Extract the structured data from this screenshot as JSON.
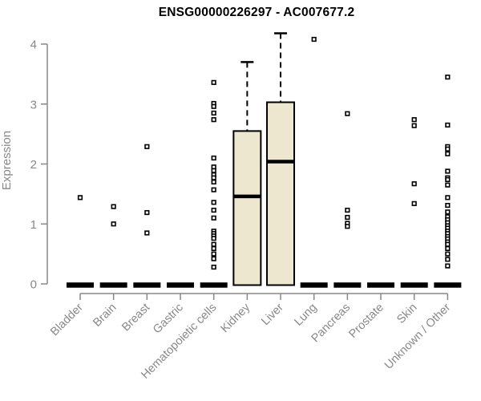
{
  "title": "ENSG00000226297 - AC007677.2",
  "chart_data": {
    "type": "boxplot",
    "title": "ENSG00000226297 - AC007677.2",
    "ylabel": "Expression",
    "xlabel": "",
    "ylim": [
      0,
      4
    ],
    "yticks": [
      0,
      1,
      2,
      3,
      4
    ],
    "grid": false,
    "legend": "none",
    "categories": [
      "Bladder",
      "Brain",
      "Breast",
      "Gastric",
      "Hematopoietic cells",
      "Kidney",
      "Liver",
      "Lung",
      "Pancreas",
      "Prostate",
      "Skin",
      "Unknown / Other"
    ],
    "boxes": [
      {
        "category": "Bladder",
        "q1": 0,
        "median": 0,
        "q3": 0,
        "whisker_low": 0,
        "whisker_high": 0,
        "outliers": [
          1.44
        ]
      },
      {
        "category": "Brain",
        "q1": 0,
        "median": 0,
        "q3": 0,
        "whisker_low": 0,
        "whisker_high": 0,
        "outliers": [
          1.29,
          1.0
        ]
      },
      {
        "category": "Breast",
        "q1": 0,
        "median": 0,
        "q3": 0,
        "whisker_low": 0,
        "whisker_high": 0,
        "outliers": [
          2.29,
          1.19,
          0.85
        ]
      },
      {
        "category": "Gastric",
        "q1": 0,
        "median": 0,
        "q3": 0,
        "whisker_low": 0,
        "whisker_high": 0,
        "outliers": []
      },
      {
        "category": "Hematopoietic cells",
        "q1": 0,
        "median": 0,
        "q3": 0,
        "whisker_low": 0,
        "whisker_high": 0,
        "outliers": [
          3.36,
          3.01,
          2.96,
          2.85,
          2.74,
          2.1,
          1.95,
          1.89,
          1.82,
          1.77,
          1.7,
          1.57,
          1.36,
          1.23,
          1.1,
          0.88,
          0.84,
          0.8,
          0.76,
          0.66,
          0.59,
          0.5,
          0.42,
          0.28
        ]
      },
      {
        "category": "Kidney",
        "q1": 0,
        "median": 1.46,
        "q3": 2.55,
        "whisker_low": 0,
        "whisker_high": 3.7,
        "outliers": []
      },
      {
        "category": "Liver",
        "q1": 0,
        "median": 2.04,
        "q3": 3.03,
        "whisker_low": 0,
        "whisker_high": 4.18,
        "outliers": []
      },
      {
        "category": "Lung",
        "q1": 0,
        "median": 0,
        "q3": 0,
        "whisker_low": 0,
        "whisker_high": 0,
        "outliers": [
          4.08
        ]
      },
      {
        "category": "Pancreas",
        "q1": 0,
        "median": 0,
        "q3": 0,
        "whisker_low": 0,
        "whisker_high": 0,
        "outliers": [
          2.84,
          1.23,
          1.11,
          1.01,
          0.96
        ]
      },
      {
        "category": "Prostate",
        "q1": 0,
        "median": 0,
        "q3": 0,
        "whisker_low": 0,
        "whisker_high": 0,
        "outliers": []
      },
      {
        "category": "Skin",
        "q1": 0,
        "median": 0,
        "q3": 0,
        "whisker_low": 0,
        "whisker_high": 0,
        "outliers": [
          2.74,
          2.64,
          1.67,
          1.34
        ]
      },
      {
        "category": "Unknown / Other",
        "q1": 0,
        "median": 0,
        "q3": 0,
        "whisker_low": 0,
        "whisker_high": 0,
        "outliers": [
          3.45,
          2.65,
          2.29,
          2.25,
          2.17,
          1.88,
          1.77,
          1.74,
          1.65,
          1.44,
          1.31,
          1.2,
          1.12,
          1.07,
          1.02,
          0.97,
          0.93,
          0.88,
          0.84,
          0.79,
          0.75,
          0.7,
          0.66,
          0.59,
          0.5,
          0.41,
          0.3
        ]
      }
    ],
    "colors": {
      "box_fill": "#ECE7CE",
      "box_border": "#000000",
      "median": "#000000",
      "outlier_border": "#000000",
      "outlier_fill": "#FFFFFF",
      "axis": "#888888",
      "tick_label": "#888888",
      "title": "#000000"
    }
  }
}
